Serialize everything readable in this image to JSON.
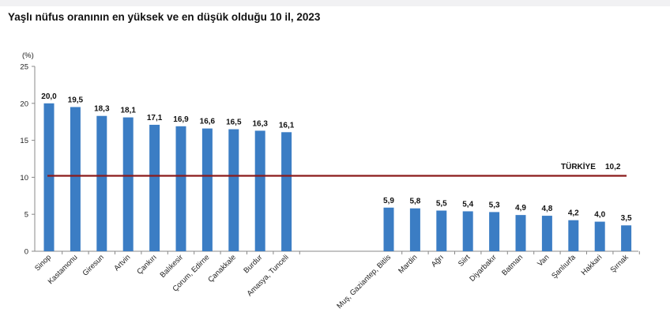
{
  "chart_data": {
    "type": "bar",
    "title": "Yaşlı nüfus oranının en yüksek ve en düşük olduğu 10 il, 2023",
    "ylabel": "(%)",
    "ylim": [
      0,
      25
    ],
    "yticks": [
      "0",
      "5",
      "10",
      "15",
      "20",
      "25"
    ],
    "grid": false,
    "groups": [
      {
        "categories": [
          "Sinop",
          "Kastamonu",
          "Giresun",
          "Artvin",
          "Çankırı",
          "Balıkesir",
          "Çorum, Edirne",
          "Çanakkale",
          "Burdur",
          "Amasya, Tunceli"
        ],
        "values": [
          20.0,
          19.5,
          18.3,
          18.1,
          17.1,
          16.9,
          16.6,
          16.5,
          16.3,
          16.1
        ],
        "value_labels": [
          "20,0",
          "19,5",
          "18,3",
          "18,1",
          "17,1",
          "16,9",
          "16,6",
          "16,5",
          "16,3",
          "16,1"
        ]
      },
      {
        "categories": [
          "Muş, Gaziantep, Bitlis",
          "Mardin",
          "Ağrı",
          "Siirt",
          "Diyarbakır",
          "Batman",
          "Van",
          "Şanlıurfa",
          "Hakkari",
          "Şırnak"
        ],
        "values": [
          5.9,
          5.8,
          5.5,
          5.4,
          5.3,
          4.9,
          4.8,
          4.2,
          4.0,
          3.5
        ],
        "value_labels": [
          "5,9",
          "5,8",
          "5,5",
          "5,4",
          "5,3",
          "4,9",
          "4,8",
          "4,2",
          "4,0",
          "3,5"
        ]
      }
    ],
    "reference_line": {
      "label": "TÜRKİYE",
      "value": 10.2,
      "value_label": "10,2"
    },
    "colors": {
      "bar": "#3b7dc4",
      "reference_line": "#8b1a1a",
      "axis": "#888888"
    }
  }
}
